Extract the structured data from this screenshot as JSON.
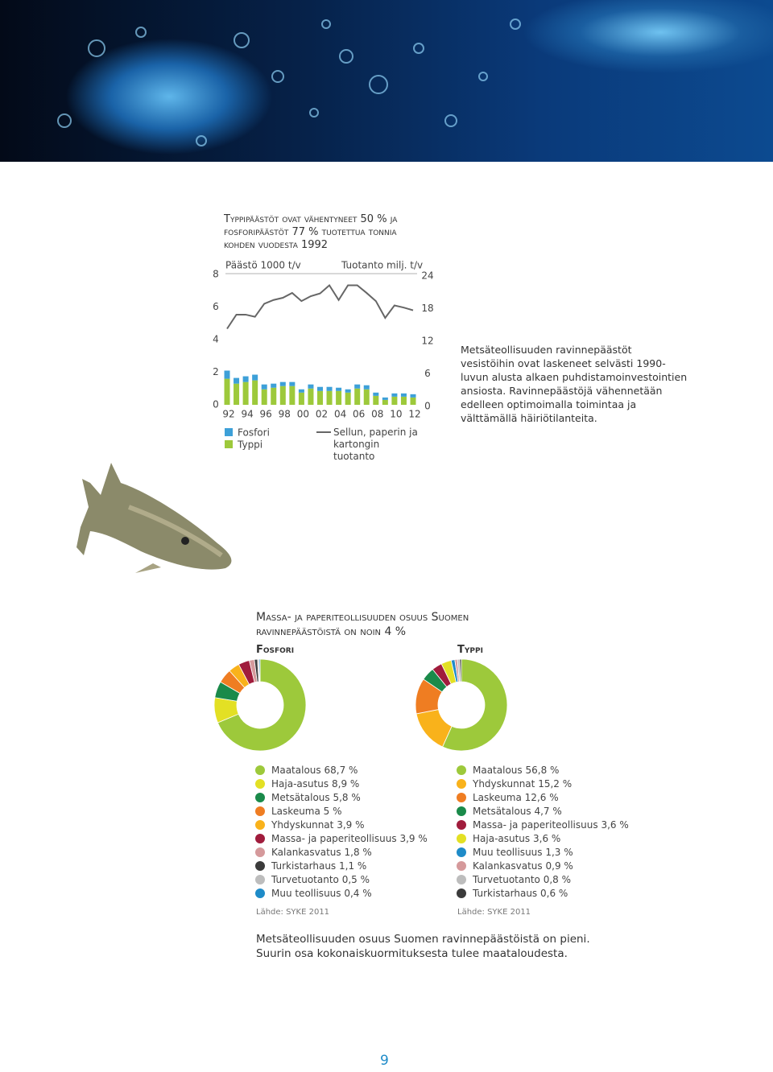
{
  "chart_data": [
    {
      "type": "bar",
      "stacked": true,
      "title": "Typpipäästöt ovat vähentyneet 50 % ja fosforipäästöt 77 % tuotettua tonnia kohden vuodesta 1992",
      "y_label": "Päästö 1000 t/v",
      "y2_label": "Tuotanto milj. t/v",
      "categories": [
        "92",
        null,
        "94",
        null,
        "96",
        null,
        "98",
        null,
        "00",
        null,
        "02",
        null,
        "04",
        null,
        "06",
        null,
        "08",
        null,
        "10",
        null,
        "12"
      ],
      "series": [
        {
          "name": "Typpi",
          "color": "#9dc93b",
          "values": [
            1.6,
            1.3,
            1.4,
            1.5,
            0.95,
            1.05,
            1.15,
            1.15,
            0.75,
            1.0,
            0.85,
            0.85,
            0.85,
            0.75,
            1.0,
            0.95,
            0.55,
            0.3,
            0.5,
            0.5,
            0.45
          ]
        },
        {
          "name": "Fosfori",
          "color": "#3da0d8",
          "values": [
            0.5,
            0.35,
            0.35,
            0.35,
            0.3,
            0.25,
            0.25,
            0.25,
            0.2,
            0.25,
            0.25,
            0.25,
            0.2,
            0.2,
            0.25,
            0.25,
            0.2,
            0.15,
            0.2,
            0.2,
            0.2
          ]
        },
        {
          "name": "Sellun, paperin ja kartongin tuotanto",
          "type": "line",
          "axis": "y2",
          "color": "#666666",
          "values": [
            14.0,
            16.6,
            16.6,
            16.2,
            18.6,
            19.3,
            19.7,
            20.6,
            19.1,
            20.0,
            20.5,
            22.0,
            19.3,
            22.0,
            22.0,
            20.6,
            19.1,
            16.0,
            18.3,
            17.9,
            17.4
          ]
        }
      ],
      "ylim": [
        0,
        8
      ],
      "yticks": [
        0,
        2,
        4,
        6,
        8
      ],
      "y2lim": [
        0,
        24
      ],
      "y2ticks": [
        0,
        6,
        12,
        18,
        24
      ]
    },
    {
      "type": "donut",
      "title": "Fosfori",
      "categories": [
        "Maatalous",
        "Haja-asutus",
        "Metsätalous",
        "Laskeuma",
        "Yhdyskunnat",
        "Massa- ja paperiteollisuus",
        "Kalankasvatus",
        "Turkistarhaus",
        "Turvetuotanto",
        "Muu teollisuus"
      ],
      "values": [
        68.7,
        8.9,
        5.8,
        5,
        3.9,
        3.9,
        1.8,
        1.1,
        0.5,
        0.4
      ],
      "value_labels": [
        "68,7 %",
        "8,9 %",
        "5,8 %",
        "5 %",
        "3,9 %",
        "3,9 %",
        "1,8 %",
        "1,1 %",
        "0,5 %",
        "0,4 %"
      ],
      "colors": [
        "#9dc93b",
        "#e3e024",
        "#1a8a4a",
        "#ef7d22",
        "#f9b21b",
        "#a01c3c",
        "#d5999b",
        "#3b3b3b",
        "#bdbdbd",
        "#1e8bc8"
      ],
      "source": "Lähde: SYKE 2011"
    },
    {
      "type": "donut",
      "title": "Typpi",
      "categories": [
        "Maatalous",
        "Yhdyskunnat",
        "Laskeuma",
        "Metsätalous",
        "Massa- ja paperiteollisuus",
        "Haja-asutus",
        "Muu teollisuus",
        "Kalankasvatus",
        "Turvetuotanto",
        "Turkistarhaus"
      ],
      "values": [
        56.8,
        15.2,
        12.6,
        4.7,
        3.6,
        3.6,
        1.3,
        0.9,
        0.8,
        0.6
      ],
      "value_labels": [
        "56,8 %",
        "15,2 %",
        "12,6 %",
        "4,7 %",
        "3,6 %",
        "3,6 %",
        "1,3 %",
        "0,9 %",
        "0,8 %",
        "0,6 %"
      ],
      "colors": [
        "#9dc93b",
        "#f9b21b",
        "#ef7d22",
        "#1a8a4a",
        "#a01c3c",
        "#e3e024",
        "#1e8bc8",
        "#d5999b",
        "#bdbdbd",
        "#3b3b3b"
      ],
      "source": "Lähde: SYKE 2011"
    }
  ],
  "side_text": "Metsäteollisuuden ravinnepäästöt vesistöihin ovat laskeneet selvästi 1990-luvun alusta alkaen puhdistamoinvestointien ansiosta. Ravinnepäästöjä vähennetään edelleen optimoimalla toimintaa ja välttämällä häiriötilanteita.",
  "section_title": "Massa- ja paperiteollisuuden osuus Suomen ravinnepäästöistä on noin 4 %",
  "summary": "Metsäteollisuuden osuus Suomen ravinnepäästöistä on pieni. Suurin osa kokonaiskuormituksesta tulee maataloudesta.",
  "page_number": 9
}
